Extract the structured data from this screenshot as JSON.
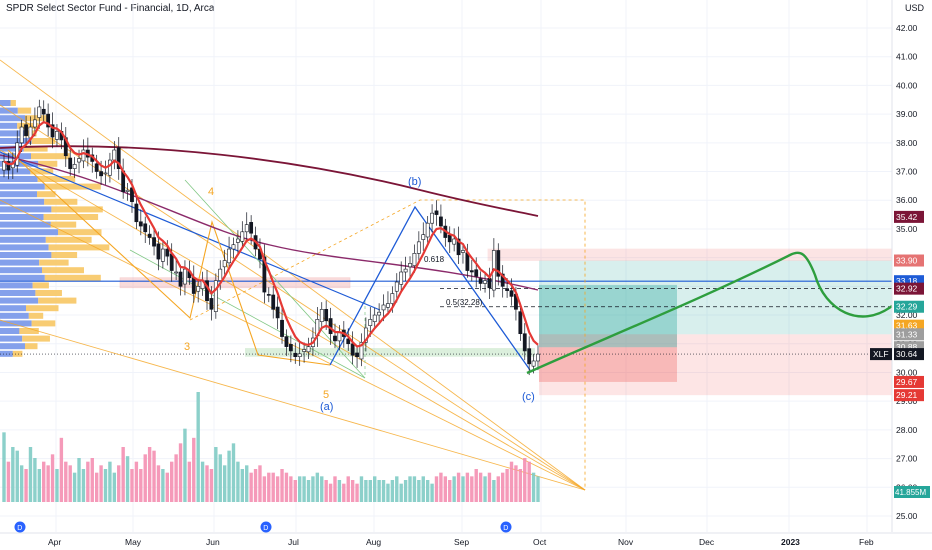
{
  "header": {
    "title": "SPDR Select Sector Fund - Financial, 1D, Arca",
    "currency": "USD"
  },
  "colors": {
    "up": "#26a69a",
    "down": "#ef5350",
    "ema_fast": "#e53935",
    "ma_slow": "#7b1537",
    "ma_long": "#6a1a4c",
    "trend": "#1e5bd6",
    "fib": "#f5a623",
    "projection": "#2e9e3e"
  },
  "chart_data": {
    "type": "candlestick",
    "symbol": "XLF",
    "ylim": [
      24.5,
      43.0
    ],
    "y_ticks": [
      25,
      26,
      27,
      28,
      29,
      30,
      31,
      32,
      33,
      34,
      35,
      36,
      37,
      38,
      39,
      40,
      41,
      42
    ],
    "x_ticks": [
      "Apr",
      "May",
      "Jun",
      "Jul",
      "Aug",
      "Sep",
      "Oct",
      "Nov",
      "Dec",
      "2023",
      "Feb"
    ],
    "close": [
      37.35,
      37.05,
      37.3,
      38.0,
      38.55,
      38.25,
      38.55,
      38.8,
      39.25,
      39.0,
      38.55,
      38.2,
      38.4,
      38.1,
      37.55,
      37.1,
      37.25,
      37.45,
      37.75,
      37.5,
      37.35,
      37.0,
      36.85,
      36.95,
      37.4,
      37.75,
      37.1,
      36.3,
      36.35,
      35.95,
      35.25,
      35.1,
      34.9,
      34.7,
      34.4,
      33.95,
      34.3,
      34.05,
      33.55,
      33.5,
      33.0,
      33.6,
      33.3,
      32.75,
      33.0,
      33.2,
      32.5,
      32.2,
      33.2,
      33.6,
      33.9,
      34.3,
      34.45,
      34.65,
      34.9,
      35.15,
      34.85,
      34.3,
      33.95,
      32.8,
      32.7,
      32.2,
      31.9,
      31.25,
      30.9,
      30.75,
      30.55,
      30.65,
      30.8,
      30.9,
      31.2,
      31.85,
      32.2,
      31.8,
      31.35,
      31.1,
      31.4,
      31.25,
      31.0,
      30.6,
      30.55,
      31.05,
      31.55,
      31.85,
      32.0,
      32.1,
      32.35,
      32.4,
      32.75,
      33.15,
      33.5,
      33.6,
      33.8,
      34.15,
      34.55,
      34.8,
      35.2,
      35.55,
      35.5,
      35.1,
      34.7,
      34.55,
      34.65,
      34.1,
      34.25,
      33.55,
      33.5,
      33.35,
      33.1,
      33.2,
      32.95,
      34.25,
      33.35,
      33.0,
      32.85,
      32.65,
      32.2,
      31.35,
      30.75,
      30.3,
      30.4,
      30.64
    ],
    "volume": [
      38,
      22,
      30,
      28,
      20,
      18,
      30,
      24,
      18,
      22,
      20,
      26,
      18,
      35,
      22,
      20,
      16,
      24,
      18,
      22,
      24,
      16,
      20,
      18,
      22,
      16,
      20,
      30,
      25,
      18,
      22,
      18,
      26,
      30,
      28,
      20,
      18,
      16,
      22,
      26,
      32,
      40,
      22,
      35,
      60,
      22,
      20,
      18,
      30,
      26,
      20,
      28,
      32,
      22,
      18,
      20,
      16,
      18,
      20,
      14,
      16,
      16,
      14,
      18,
      16,
      14,
      12,
      14,
      14,
      12,
      14,
      16,
      14,
      12,
      10,
      14,
      12,
      10,
      14,
      12,
      10,
      14,
      12,
      12,
      14,
      12,
      12,
      10,
      12,
      14,
      10,
      12,
      14,
      14,
      12,
      14,
      12,
      10,
      14,
      16,
      14,
      12,
      14,
      16,
      14,
      16,
      14,
      18,
      16,
      14,
      16,
      12,
      14,
      16,
      18,
      22,
      20,
      18,
      24,
      22,
      16,
      14
    ],
    "price_labels": [
      {
        "value": "35.42",
        "color": "#7b1537"
      },
      {
        "value": "33.90",
        "color": "#e57373"
      },
      {
        "value": "33.18",
        "color": "#1e5bd6"
      },
      {
        "value": "32.92",
        "color": "#7b1537"
      },
      {
        "value": "32.29",
        "color": "#26a69a"
      },
      {
        "value": "31.63",
        "color": "#f5a623"
      },
      {
        "value": "31.33",
        "color": "#9e9e9e"
      },
      {
        "value": "30.88",
        "color": "#9e9e9e"
      },
      {
        "value": "30.64",
        "color": "#131722"
      },
      {
        "value": "29.67",
        "color": "#e53935"
      },
      {
        "value": "29.21",
        "color": "#e53935"
      }
    ],
    "volume_label": "41.855M",
    "symbol_label": "XLF",
    "wave_labels": [
      "4",
      "3",
      "5",
      "(a)",
      "(b)",
      "(c)"
    ],
    "fib_labels": [
      "0.618",
      "0.5(32.28)"
    ],
    "dividend_marker": "D"
  }
}
